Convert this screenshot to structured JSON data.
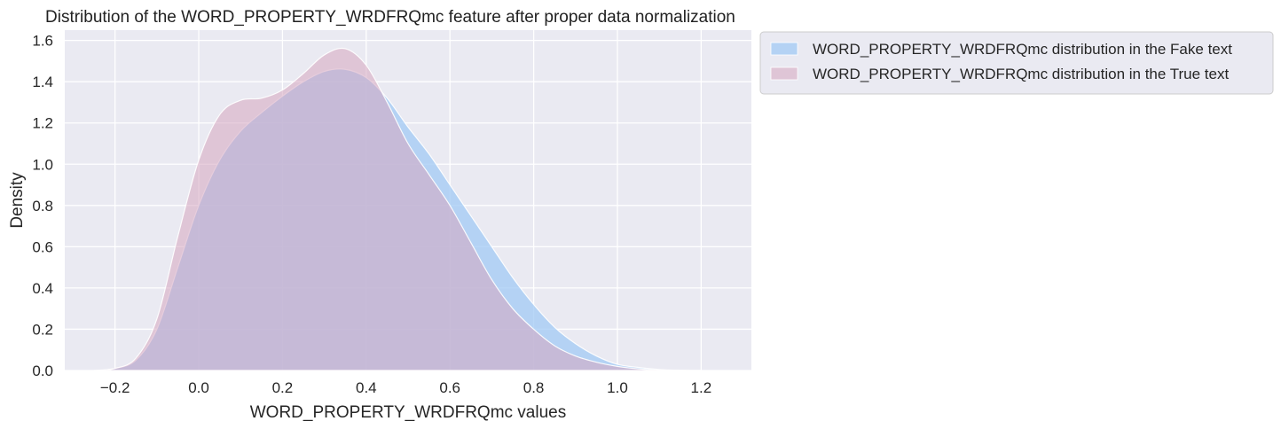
{
  "chart_data": {
    "type": "area",
    "title": "Distribution of the WORD_PROPERTY_WRDFRQmc feature after proper data normalization",
    "xlabel": "WORD_PROPERTY_WRDFRQmc values",
    "ylabel": "Density",
    "xlim": [
      -0.32,
      1.32
    ],
    "ylim": [
      0,
      1.65
    ],
    "xticks": [
      -0.2,
      0.0,
      0.2,
      0.4,
      0.6,
      0.8,
      1.0,
      1.2
    ],
    "xtick_labels": [
      "−0.2",
      "0.0",
      "0.2",
      "0.4",
      "0.6",
      "0.8",
      "1.0",
      "1.2"
    ],
    "yticks": [
      0.0,
      0.2,
      0.4,
      0.6,
      0.8,
      1.0,
      1.2,
      1.4,
      1.6
    ],
    "ytick_labels": [
      "0.0",
      "0.2",
      "0.4",
      "0.6",
      "0.8",
      "1.0",
      "1.2",
      "1.4",
      "1.6"
    ],
    "grid": true,
    "background": "#eaeaf2",
    "legend_position": "outside-upper-right",
    "series": [
      {
        "name": "WORD_PROPERTY_WRDFRQmc distribution in the Fake text",
        "color": "#a1c9f4",
        "x": [
          -0.25,
          -0.2,
          -0.15,
          -0.1,
          -0.05,
          0.0,
          0.05,
          0.1,
          0.15,
          0.2,
          0.25,
          0.3,
          0.35,
          0.4,
          0.45,
          0.5,
          0.55,
          0.6,
          0.65,
          0.7,
          0.75,
          0.8,
          0.85,
          0.9,
          0.95,
          1.0,
          1.05,
          1.1,
          1.15,
          1.2
        ],
        "y": [
          0.0,
          0.01,
          0.05,
          0.2,
          0.5,
          0.8,
          1.02,
          1.16,
          1.25,
          1.33,
          1.4,
          1.45,
          1.46,
          1.42,
          1.32,
          1.18,
          1.05,
          0.9,
          0.75,
          0.6,
          0.45,
          0.32,
          0.21,
          0.13,
          0.07,
          0.03,
          0.015,
          0.005,
          0.001,
          0.0
        ]
      },
      {
        "name": "WORD_PROPERTY_WRDFRQmc distribution in the True text",
        "color": "#d6a5bf",
        "x": [
          -0.25,
          -0.2,
          -0.15,
          -0.1,
          -0.05,
          0.0,
          0.05,
          0.1,
          0.15,
          0.2,
          0.25,
          0.3,
          0.35,
          0.4,
          0.45,
          0.5,
          0.55,
          0.6,
          0.65,
          0.7,
          0.75,
          0.8,
          0.85,
          0.9,
          0.95,
          1.0,
          1.05,
          1.1,
          1.15,
          1.2
        ],
        "y": [
          0.0,
          0.01,
          0.06,
          0.25,
          0.65,
          1.02,
          1.24,
          1.31,
          1.32,
          1.36,
          1.44,
          1.53,
          1.56,
          1.48,
          1.3,
          1.1,
          0.95,
          0.8,
          0.62,
          0.44,
          0.3,
          0.2,
          0.12,
          0.07,
          0.04,
          0.02,
          0.008,
          0.002,
          0.0,
          0.0
        ]
      }
    ]
  }
}
